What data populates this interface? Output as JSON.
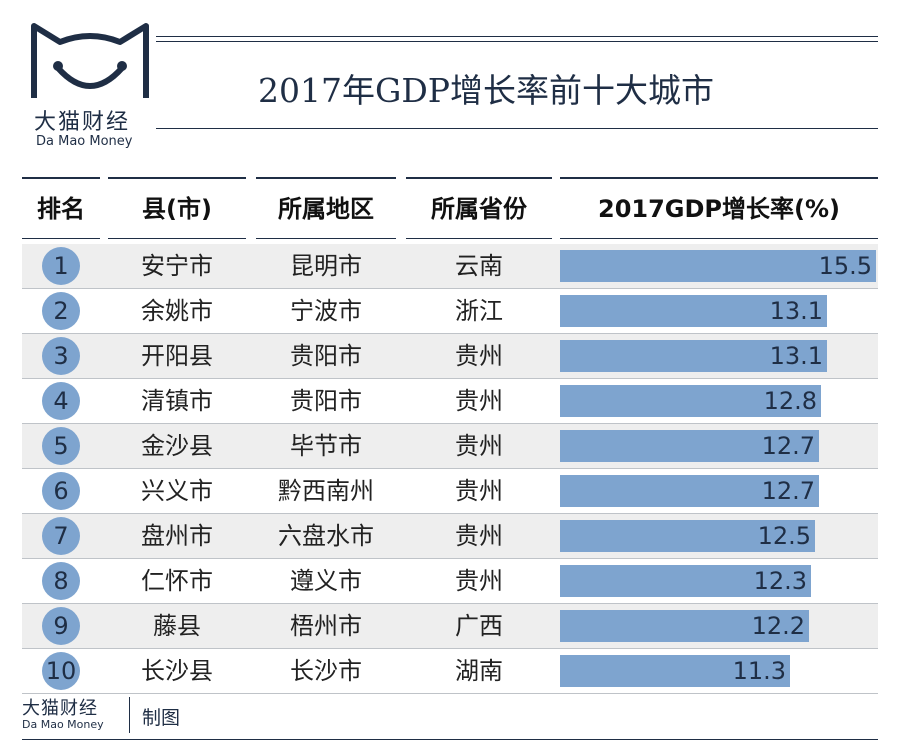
{
  "logo": {
    "name_cn": "大猫财经",
    "name_en": "Da Mao Money"
  },
  "chart_data": {
    "type": "table",
    "title": "2017年GDP增长率前十大城市",
    "columns": [
      "排名",
      "县(市)",
      "所属地区",
      "所属省份",
      "2017GDP增长率(%)"
    ],
    "rows": [
      {
        "rank": "1",
        "county": "安宁市",
        "region": "昆明市",
        "province": "云南",
        "growth": 15.5
      },
      {
        "rank": "2",
        "county": "余姚市",
        "region": "宁波市",
        "province": "浙江",
        "growth": 13.1
      },
      {
        "rank": "3",
        "county": "开阳县",
        "region": "贵阳市",
        "province": "贵州",
        "growth": 13.1
      },
      {
        "rank": "4",
        "county": "清镇市",
        "region": "贵阳市",
        "province": "贵州",
        "growth": 12.8
      },
      {
        "rank": "5",
        "county": "金沙县",
        "region": "毕节市",
        "province": "贵州",
        "growth": 12.7
      },
      {
        "rank": "6",
        "county": "兴义市",
        "region": "黔西南州",
        "province": "贵州",
        "growth": 12.7
      },
      {
        "rank": "7",
        "county": "盘州市",
        "region": "六盘水市",
        "province": "贵州",
        "growth": 12.5
      },
      {
        "rank": "8",
        "county": "仁怀市",
        "region": "遵义市",
        "province": "贵州",
        "growth": 12.3
      },
      {
        "rank": "9",
        "county": "藤县",
        "region": "梧州市",
        "province": "广西",
        "growth": 12.2
      },
      {
        "rank": "10",
        "county": "长沙县",
        "region": "长沙市",
        "province": "湖南",
        "growth": 11.3
      }
    ],
    "bar_max": 15.5,
    "bar_color": "#7ea4cf",
    "zebra_color": "#eeeeee"
  },
  "footer": {
    "brand_cn": "大猫财经",
    "brand_en": "Da Mao Money",
    "made_by": "制图"
  }
}
